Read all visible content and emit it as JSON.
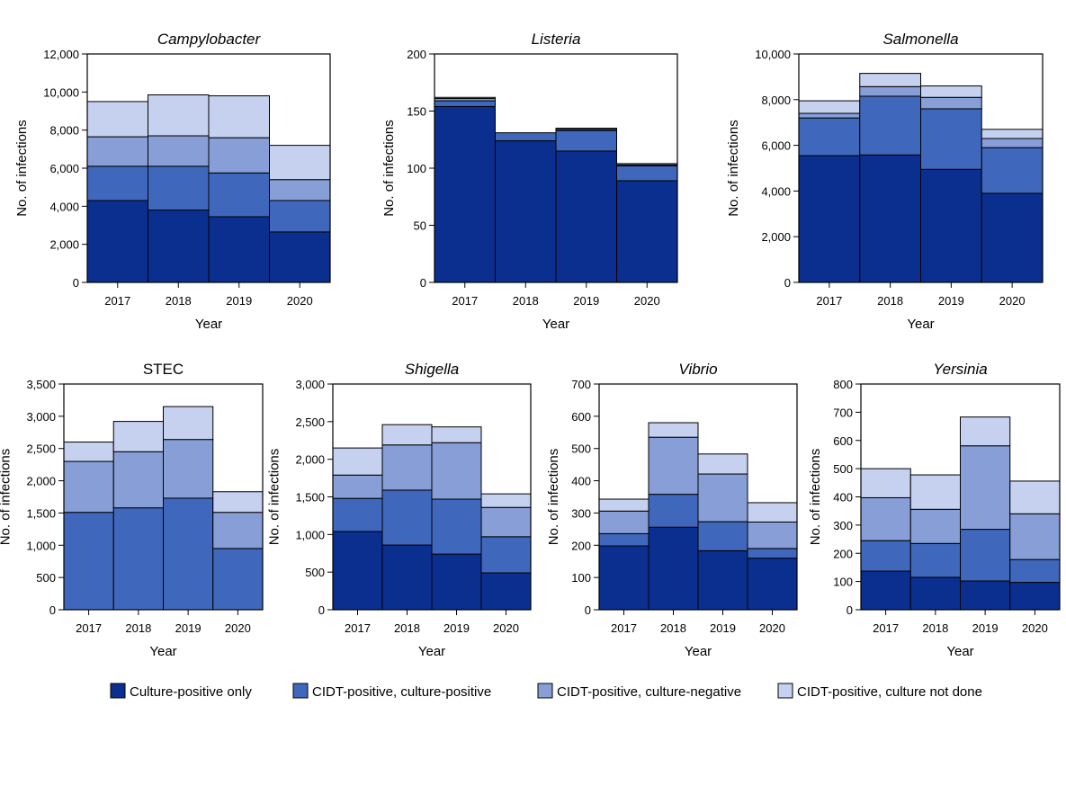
{
  "legend": [
    {
      "label": "Culture-positive only",
      "color": "#0a2f8f"
    },
    {
      "label": "CIDT-positive, culture-positive",
      "color": "#3f68bd"
    },
    {
      "label": "CIDT-positive, culture-negative",
      "color": "#879fd6"
    },
    {
      "label": "CIDT-positive, culture not done",
      "color": "#c5d1ee"
    }
  ],
  "chart_data": [
    {
      "type": "bar",
      "stacked": true,
      "title": "Campylobacter",
      "title_italic": true,
      "xlabel": "Year",
      "ylabel": "No. of infections",
      "categories": [
        "2017",
        "2018",
        "2019",
        "2020"
      ],
      "ylim": [
        0,
        12000
      ],
      "yticks": [
        0,
        2000,
        4000,
        6000,
        8000,
        10000,
        12000
      ],
      "ytick_labels": [
        "0",
        "2,000",
        "4,000",
        "6,000",
        "8,000",
        "10,000",
        "12,000"
      ],
      "series": [
        {
          "name": "Culture-positive only",
          "values": [
            4300,
            3800,
            3450,
            2650
          ]
        },
        {
          "name": "CIDT-positive, culture-positive",
          "values": [
            1800,
            2300,
            2300,
            1650
          ]
        },
        {
          "name": "CIDT-positive, culture-negative",
          "values": [
            1550,
            1600,
            1850,
            1100
          ]
        },
        {
          "name": "CIDT-positive, culture not done",
          "values": [
            1850,
            2150,
            2200,
            1800
          ]
        }
      ]
    },
    {
      "type": "bar",
      "stacked": true,
      "title": "Listeria",
      "title_italic": true,
      "xlabel": "Year",
      "ylabel": "No. of infections",
      "categories": [
        "2017",
        "2018",
        "2019",
        "2020"
      ],
      "ylim": [
        0,
        200
      ],
      "yticks": [
        0,
        50,
        100,
        150,
        200
      ],
      "ytick_labels": [
        "0",
        "50",
        "100",
        "150",
        "200"
      ],
      "series": [
        {
          "name": "Culture-positive only",
          "values": [
            154,
            124,
            115,
            89
          ]
        },
        {
          "name": "CIDT-positive, culture-positive",
          "values": [
            5,
            7,
            18,
            13
          ]
        },
        {
          "name": "CIDT-positive, culture-negative",
          "values": [
            2,
            0,
            1,
            1
          ]
        },
        {
          "name": "CIDT-positive, culture not done",
          "values": [
            1,
            0,
            1,
            1
          ]
        }
      ]
    },
    {
      "type": "bar",
      "stacked": true,
      "title": "Salmonella",
      "title_italic": true,
      "xlabel": "Year",
      "ylabel": "No. of infections",
      "categories": [
        "2017",
        "2018",
        "2019",
        "2020"
      ],
      "ylim": [
        0,
        10000
      ],
      "yticks": [
        0,
        2000,
        4000,
        6000,
        8000,
        10000
      ],
      "ytick_labels": [
        "0",
        "2,000",
        "4,000",
        "6,000",
        "8,000",
        "10,000"
      ],
      "series": [
        {
          "name": "Culture-positive only",
          "values": [
            5550,
            5580,
            4950,
            3900
          ]
        },
        {
          "name": "CIDT-positive, culture-positive",
          "values": [
            1650,
            2570,
            2650,
            2000
          ]
        },
        {
          "name": "CIDT-positive, culture-negative",
          "values": [
            200,
            420,
            500,
            400
          ]
        },
        {
          "name": "CIDT-positive, culture not done",
          "values": [
            550,
            580,
            500,
            400
          ]
        }
      ]
    },
    {
      "type": "bar",
      "stacked": true,
      "title": "STEC",
      "title_italic": false,
      "xlabel": "Year",
      "ylabel": "No. of infections",
      "categories": [
        "2017",
        "2018",
        "2019",
        "2020"
      ],
      "ylim": [
        0,
        3500
      ],
      "yticks": [
        0,
        500,
        1000,
        1500,
        2000,
        2500,
        3000,
        3500
      ],
      "ytick_labels": [
        "0",
        "500",
        "1,000",
        "1,500",
        "2,000",
        "2,500",
        "3,000",
        "3,500"
      ],
      "series": [
        {
          "name": "Culture-positive only",
          "values": [
            0,
            0,
            0,
            0
          ]
        },
        {
          "name": "CIDT-positive, culture-positive",
          "values": [
            1510,
            1580,
            1730,
            950
          ]
        },
        {
          "name": "CIDT-positive, culture-negative",
          "values": [
            790,
            870,
            910,
            560
          ]
        },
        {
          "name": "CIDT-positive, culture not done",
          "values": [
            300,
            470,
            510,
            320
          ]
        }
      ]
    },
    {
      "type": "bar",
      "stacked": true,
      "title": "Shigella",
      "title_italic": true,
      "xlabel": "Year",
      "ylabel": "No. of infections",
      "categories": [
        "2017",
        "2018",
        "2019",
        "2020"
      ],
      "ylim": [
        0,
        3000
      ],
      "yticks": [
        0,
        500,
        1000,
        1500,
        2000,
        2500,
        3000
      ],
      "ytick_labels": [
        "0",
        "500",
        "1,000",
        "1,500",
        "2,000",
        "2,500",
        "3,000"
      ],
      "series": [
        {
          "name": "Culture-positive only",
          "values": [
            1040,
            860,
            740,
            490
          ]
        },
        {
          "name": "CIDT-positive, culture-positive",
          "values": [
            440,
            730,
            730,
            480
          ]
        },
        {
          "name": "CIDT-positive, culture-negative",
          "values": [
            310,
            600,
            750,
            390
          ]
        },
        {
          "name": "CIDT-positive, culture not done",
          "values": [
            360,
            270,
            210,
            180
          ]
        }
      ]
    },
    {
      "type": "bar",
      "stacked": true,
      "title": "Vibrio",
      "title_italic": true,
      "xlabel": "Year",
      "ylabel": "No. of infections",
      "categories": [
        "2017",
        "2018",
        "2019",
        "2020"
      ],
      "ylim": [
        0,
        700
      ],
      "yticks": [
        0,
        100,
        200,
        300,
        400,
        500,
        600,
        700
      ],
      "ytick_labels": [
        "0",
        "100",
        "200",
        "300",
        "400",
        "500",
        "600",
        "700"
      ],
      "series": [
        {
          "name": "Culture-positive only",
          "values": [
            198,
            256,
            183,
            160
          ]
        },
        {
          "name": "CIDT-positive, culture-positive",
          "values": [
            38,
            102,
            90,
            30
          ]
        },
        {
          "name": "CIDT-positive, culture-negative",
          "values": [
            70,
            177,
            148,
            82
          ]
        },
        {
          "name": "CIDT-positive, culture not done",
          "values": [
            37,
            45,
            62,
            60
          ]
        }
      ]
    },
    {
      "type": "bar",
      "stacked": true,
      "title": "Yersinia",
      "title_italic": true,
      "xlabel": "Year",
      "ylabel": "No. of infections",
      "categories": [
        "2017",
        "2018",
        "2019",
        "2020"
      ],
      "ylim": [
        0,
        800
      ],
      "yticks": [
        0,
        100,
        200,
        300,
        400,
        500,
        600,
        700,
        800
      ],
      "ytick_labels": [
        "0",
        "100",
        "200",
        "300",
        "400",
        "500",
        "600",
        "700",
        "800"
      ],
      "series": [
        {
          "name": "Culture-positive only",
          "values": [
            137,
            115,
            102,
            97
          ]
        },
        {
          "name": "CIDT-positive, culture-positive",
          "values": [
            108,
            120,
            183,
            81
          ]
        },
        {
          "name": "CIDT-positive, culture-negative",
          "values": [
            152,
            121,
            296,
            162
          ]
        },
        {
          "name": "CIDT-positive, culture not done",
          "values": [
            103,
            122,
            102,
            116
          ]
        }
      ]
    }
  ]
}
